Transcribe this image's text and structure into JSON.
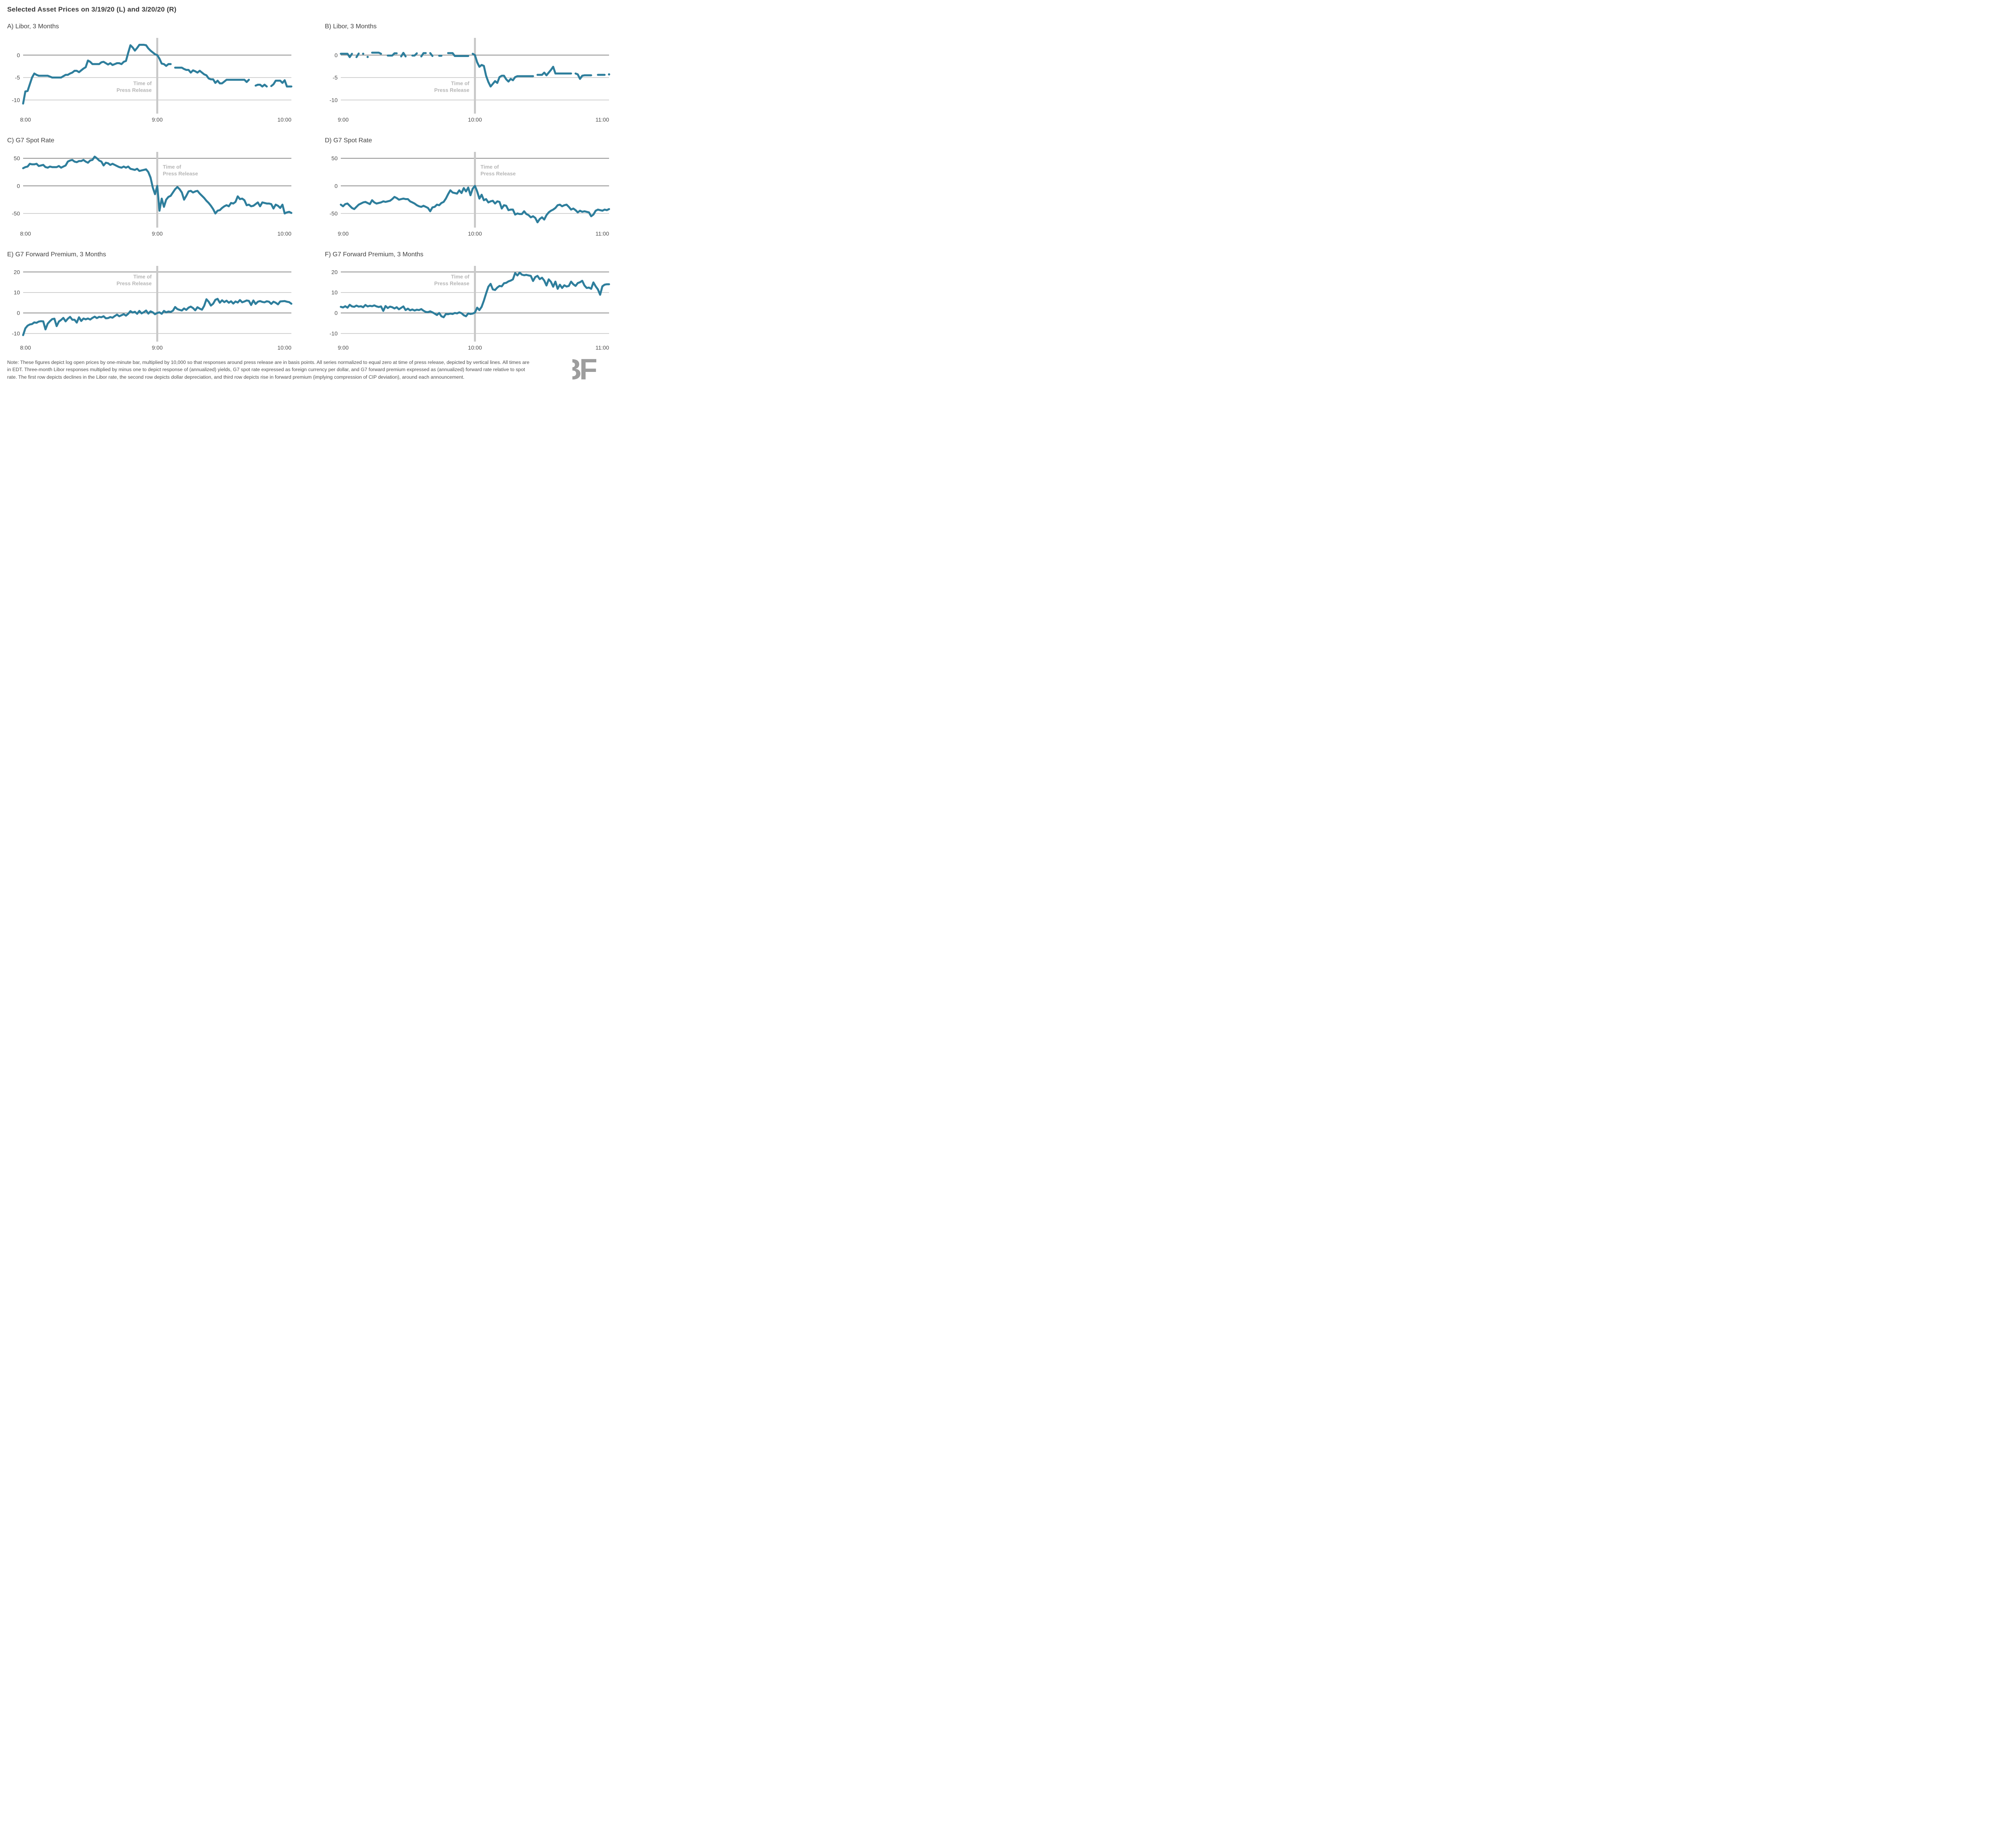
{
  "title": "Selected Asset Prices on 3/19/20 (L) and 3/20/20 (R)",
  "logo_text": "BF",
  "colors": {
    "line": "#2E7E9C",
    "grid_light": "#C2C2C2",
    "grid_dark": "#8F8F8F",
    "press_line": "#C9C9C9",
    "annotation": "#B5B5B5",
    "tick_label": "#4A4A4A"
  },
  "note": {
    "lines": [
      "Note: These figures depict log open prices by one-minute bar, multiplied by 10,000 so that responses around press release are in basis points.  All series normalized to equal zero at time of press release, depicted by vertical lines.  All times are",
      "in EDT. Three-month Libor responses multiplied by minus one to depict response of (annualized) yields, G7 spot rate expressed as foreign currency per dollar, and G7 forward premium expressed as (annualized) forward rate relative to spot",
      "rate.  The first row depicts declines in the Libor rate, the second row depicts dollar depreciation, and third row depicts rise in forward premium (implying compression of CIP deviation), around each announcement."
    ]
  },
  "chart_data": [
    {
      "type": "line",
      "title": "A) Libor, 3 Months",
      "x_tick_labels": [
        "8:00",
        "9:00",
        "10:00"
      ],
      "x_minutes": 120,
      "press_minute": 60,
      "y_ticks": [
        0,
        -5,
        -10
      ],
      "y_dark_ticks": [
        0
      ],
      "y_top": 3.4,
      "y_bottom": -12.6,
      "annotation": {
        "text_lines": [
          "Time of",
          "Press Release"
        ],
        "side": "left",
        "center_value": -7.4
      },
      "values": [
        -10.8,
        -8.1,
        -8.0,
        -6.5,
        -5.0,
        -4.1,
        -4.4,
        -4.6,
        -4.6,
        -4.6,
        -4.6,
        -4.6,
        -4.8,
        -5.0,
        -5.0,
        -5.0,
        -5.0,
        -5.0,
        -4.7,
        -4.4,
        -4.4,
        -4.1,
        -3.9,
        -3.5,
        -3.5,
        -3.8,
        -3.4,
        -3.0,
        -2.7,
        -1.2,
        -1.5,
        -2.0,
        -2.0,
        -2.0,
        -2.0,
        -1.6,
        -1.5,
        -1.8,
        -2.1,
        -1.8,
        -2.2,
        -2.0,
        -1.8,
        -1.8,
        -2.0,
        -1.5,
        -1.3,
        0.5,
        2.2,
        1.7,
        1.0,
        1.6,
        2.3,
        2.3,
        2.3,
        2.2,
        1.5,
        1.0,
        0.6,
        0.2,
        0.0,
        -0.8,
        -1.9,
        -2.0,
        -2.4,
        -2.0,
        -2.0,
        null,
        -2.8,
        -2.8,
        -2.8,
        -2.8,
        -3.1,
        -3.3,
        -3.3,
        -3.9,
        -3.4,
        -3.6,
        -3.9,
        -3.5,
        -3.9,
        -4.3,
        -4.5,
        -5.2,
        -5.4,
        -5.4,
        -6.2,
        -5.7,
        -6.3,
        -6.3,
        -5.9,
        -5.5,
        -5.5,
        -5.5,
        -5.5,
        -5.5,
        -5.5,
        -5.5,
        -5.5,
        -5.5,
        -6.0,
        -5.5,
        null,
        null,
        -6.8,
        -6.6,
        -6.6,
        -7.0,
        -6.6,
        -7.0,
        null,
        -6.9,
        -6.5,
        -5.7,
        -5.7,
        -5.7,
        -6.2,
        -5.6,
        -7.0,
        -7.0,
        -7.0
      ]
    },
    {
      "type": "line",
      "title": "B) Libor, 3 Months",
      "x_tick_labels": [
        "9:00",
        "10:00",
        "11:00"
      ],
      "x_minutes": 120,
      "press_minute": 60,
      "y_ticks": [
        0,
        -5,
        -10
      ],
      "y_dark_ticks": [
        0
      ],
      "y_top": 3.4,
      "y_bottom": -12.6,
      "annotation": {
        "text_lines": [
          "Time of",
          "Press Release"
        ],
        "side": "left",
        "center_value": -7.4
      },
      "values": [
        0.3,
        0.3,
        0.3,
        0.3,
        -0.45,
        0.3,
        null,
        -0.45,
        0.35,
        null,
        0.3,
        null,
        -0.4,
        null,
        0.55,
        0.55,
        0.55,
        0.55,
        0.3,
        null,
        null,
        -0.1,
        -0.1,
        -0.1,
        0.4,
        0.4,
        null,
        -0.3,
        0.5,
        -0.3,
        null,
        null,
        -0.1,
        -0.1,
        0.4,
        null,
        -0.3,
        0.45,
        0.45,
        null,
        0.45,
        -0.2,
        null,
        null,
        -0.15,
        -0.15,
        null,
        null,
        0.45,
        0.45,
        0.45,
        -0.2,
        -0.2,
        -0.2,
        -0.2,
        -0.2,
        -0.2,
        -0.2,
        null,
        0.3,
        0.0,
        -1.6,
        -2.6,
        -2.2,
        -2.4,
        -4.6,
        -6.0,
        -7.0,
        -6.4,
        -5.8,
        -6.2,
        -4.9,
        -4.6,
        -4.6,
        -5.4,
        -5.9,
        -5.3,
        -5.6,
        -4.9,
        -4.7,
        -4.7,
        -4.7,
        -4.7,
        -4.7,
        -4.7,
        -4.7,
        -4.7,
        null,
        -4.4,
        -4.4,
        -4.4,
        -3.9,
        -4.5,
        -3.9,
        -3.3,
        -2.6,
        -4.1,
        -4.1,
        -4.1,
        -4.1,
        -4.1,
        -4.1,
        -4.1,
        -4.1,
        null,
        -4.1,
        -4.3,
        -5.3,
        -4.6,
        -4.5,
        -4.5,
        -4.5,
        -4.5,
        null,
        null,
        -4.4,
        -4.4,
        -4.4,
        -4.4,
        null,
        -4.3
      ]
    },
    {
      "type": "line",
      "title": "C) G7 Spot Rate",
      "x_tick_labels": [
        "8:00",
        "9:00",
        "10:00"
      ],
      "x_minutes": 120,
      "press_minute": 60,
      "y_ticks": [
        50,
        0,
        -50
      ],
      "y_dark_ticks": [
        50,
        0
      ],
      "y_top": 58,
      "y_bottom": -72,
      "annotation": {
        "text_lines": [
          "Time of",
          "Press Release"
        ],
        "side": "right",
        "center_value": 25.5
      },
      "values": [
        32,
        34,
        35,
        40,
        39,
        39,
        40,
        36,
        37,
        38,
        34,
        33,
        35,
        34,
        34,
        34,
        36,
        33,
        35,
        37,
        44,
        46,
        47,
        44,
        43,
        45,
        45,
        47,
        44,
        42,
        46,
        47,
        53,
        50,
        46,
        44,
        37,
        42,
        41,
        38,
        40,
        38,
        36,
        34,
        33,
        35,
        33,
        35,
        31,
        30,
        29,
        31,
        27,
        28,
        29,
        30,
        25,
        15,
        -3,
        -15,
        0,
        -45,
        -23,
        -38,
        -25,
        -20,
        -18,
        -12,
        -6,
        -2,
        -6,
        -12,
        -25,
        -18,
        -10,
        -9,
        -12,
        -10,
        -9,
        -14,
        -18,
        -22,
        -27,
        -31,
        -36,
        -42,
        -50,
        -45,
        -44,
        -40,
        -37,
        -35,
        -37,
        -31,
        -32,
        -29,
        -19,
        -24,
        -23,
        -26,
        -35,
        -34,
        -37,
        -36,
        -33,
        -30,
        -37,
        -30,
        -31,
        -32,
        -32,
        -33,
        -41,
        -34,
        -36,
        -40,
        -34,
        -50,
        -48,
        -47,
        -49
      ]
    },
    {
      "type": "line",
      "title": "D) G7 Spot Rate",
      "x_tick_labels": [
        "9:00",
        "10:00",
        "11:00"
      ],
      "x_minutes": 120,
      "press_minute": 60,
      "y_ticks": [
        50,
        0,
        -50
      ],
      "y_dark_ticks": [
        50,
        0
      ],
      "y_top": 58,
      "y_bottom": -72,
      "annotation": {
        "text_lines": [
          "Time of",
          "Press Release"
        ],
        "side": "right",
        "center_value": 25.5
      },
      "values": [
        -34,
        -37,
        -33,
        -32,
        -36,
        -40,
        -42,
        -38,
        -34,
        -32,
        -30,
        -29,
        -31,
        -33,
        -26,
        -30,
        -32,
        -31,
        -30,
        -28,
        -29,
        -28,
        -27,
        -24,
        -20,
        -22,
        -25,
        -24,
        -23,
        -24,
        -24,
        -28,
        -30,
        -32,
        -35,
        -37,
        -38,
        -36,
        -38,
        -40,
        -46,
        -39,
        -38,
        -34,
        -35,
        -31,
        -29,
        -23,
        -15,
        -8,
        -12,
        -13,
        -14,
        -8,
        -13,
        -4,
        -10,
        -3,
        -17,
        -5,
        0,
        -10,
        -23,
        -16,
        -26,
        -24,
        -30,
        -28,
        -27,
        -32,
        -28,
        -29,
        -41,
        -35,
        -36,
        -44,
        -43,
        -43,
        -52,
        -50,
        -51,
        -51,
        -46,
        -51,
        -53,
        -57,
        -55,
        -58,
        -66,
        -60,
        -57,
        -61,
        -53,
        -48,
        -45,
        -43,
        -40,
        -35,
        -34,
        -37,
        -35,
        -34,
        -38,
        -43,
        -41,
        -44,
        -48,
        -45,
        -47,
        -46,
        -47,
        -48,
        -55,
        -52,
        -45,
        -43,
        -44,
        -45,
        -43,
        -44,
        -42
      ]
    },
    {
      "type": "line",
      "title": "E) G7 Forward Premium, 3 Months",
      "x_tick_labels": [
        "8:00",
        "9:00",
        "10:00"
      ],
      "x_minutes": 120,
      "press_minute": 60,
      "y_ticks": [
        20,
        10,
        0,
        -10
      ],
      "y_dark_ticks": [
        20,
        0
      ],
      "y_top": 22,
      "y_bottom": -13,
      "annotation": {
        "text_lines": [
          "Time of",
          "Press Release"
        ],
        "side": "left",
        "center_value": 15.3
      },
      "values": [
        -10.8,
        -7.5,
        -6.2,
        -5.6,
        -5.4,
        -4.6,
        -4.8,
        -4.2,
        -4.0,
        -4.1,
        -8.0,
        -5.2,
        -4.0,
        -3.0,
        -2.8,
        -6.4,
        -4.2,
        -3.4,
        -2.4,
        -4.1,
        -2.8,
        -1.9,
        -3.3,
        -3.3,
        -4.7,
        -2.1,
        -3.9,
        -2.7,
        -3.1,
        -2.7,
        -3.2,
        -2.4,
        -1.8,
        -2.5,
        -1.9,
        -2.1,
        -1.6,
        -2.6,
        -2.5,
        -2.0,
        -2.3,
        -1.5,
        -0.8,
        -1.6,
        -1.1,
        -0.6,
        -1.3,
        -0.4,
        0.9,
        0.2,
        0.6,
        -0.4,
        1.0,
        -0.2,
        0.4,
        1.2,
        -0.3,
        0.8,
        0.3,
        -0.6,
        0.0,
        0.3,
        -0.4,
        1.0,
        0.3,
        0.7,
        0.5,
        1.1,
        2.9,
        1.9,
        1.5,
        1.2,
        2.2,
        1.5,
        2.6,
        3.1,
        2.4,
        1.3,
        2.8,
        2.1,
        1.6,
        3.5,
        6.7,
        5.5,
        3.6,
        4.5,
        6.4,
        6.9,
        5.0,
        6.2,
        5.3,
        6.0,
        5.0,
        5.7,
        4.6,
        5.6,
        5.1,
        6.3,
        5.2,
        5.6,
        6.1,
        5.9,
        3.9,
        6.1,
        4.4,
        5.5,
        5.8,
        5.4,
        5.2,
        5.7,
        5.5,
        4.4,
        5.5,
        5.0,
        4.2,
        5.6,
        5.7,
        5.8,
        5.5,
        5.3,
        4.5
      ]
    },
    {
      "type": "line",
      "title": "F) G7 Forward Premium, 3 Months",
      "x_tick_labels": [
        "9:00",
        "10:00",
        "11:00"
      ],
      "x_minutes": 120,
      "press_minute": 60,
      "y_ticks": [
        20,
        10,
        0,
        -10
      ],
      "y_dark_ticks": [
        20,
        0
      ],
      "y_top": 22,
      "y_bottom": -13,
      "annotation": {
        "text_lines": [
          "Time of",
          "Press Release"
        ],
        "side": "left",
        "center_value": 15.3
      },
      "values": [
        3.0,
        2.7,
        3.3,
        2.6,
        4.0,
        3.2,
        3.0,
        3.6,
        3.1,
        3.3,
        2.8,
        3.9,
        3.2,
        3.5,
        3.3,
        3.7,
        3.2,
        2.9,
        3.2,
        1.0,
        3.4,
        2.4,
        3.1,
        2.8,
        2.2,
        2.8,
        1.8,
        2.5,
        3.2,
        1.4,
        2.1,
        1.3,
        1.7,
        1.2,
        1.6,
        1.4,
        1.9,
        1.1,
        0.5,
        0.4,
        0.8,
        0.3,
        -0.3,
        -1.0,
        0.0,
        -1.6,
        -2.1,
        -0.5,
        -0.6,
        -0.3,
        -0.5,
        0.0,
        -0.2,
        0.3,
        -0.1,
        -1.1,
        -1.6,
        -0.2,
        -0.5,
        -0.3,
        0.2,
        2.6,
        1.4,
        3.0,
        6.0,
        9.5,
        12.8,
        14.2,
        11.5,
        11.2,
        12.4,
        13.2,
        13.0,
        14.5,
        14.7,
        15.4,
        15.8,
        16.4,
        19.5,
        18.3,
        19.7,
        18.7,
        18.4,
        18.6,
        18.3,
        18.1,
        15.6,
        17.5,
        18.1,
        16.5,
        17.2,
        15.8,
        13.4,
        16.4,
        15.2,
        12.8,
        15.3,
        11.8,
        13.8,
        12.2,
        13.5,
        12.9,
        13.2,
        15.3,
        14.0,
        13.2,
        14.6,
        15.0,
        15.7,
        13.4,
        12.2,
        12.4,
        11.8,
        14.9,
        13.0,
        11.5,
        8.9,
        13.0,
        13.8,
        14.0,
        14.0
      ]
    }
  ]
}
